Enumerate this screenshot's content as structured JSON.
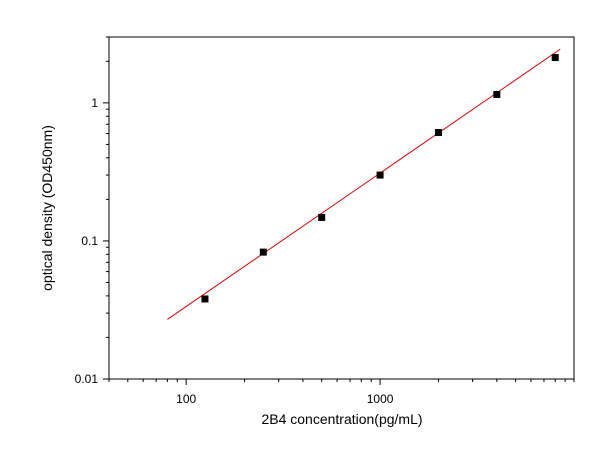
{
  "chart_data": {
    "type": "scatter",
    "xlabel": "2B4  concentration(pg/mL)",
    "ylabel": "optical density (OD450nm)",
    "xscale": "log",
    "yscale": "log",
    "xlim": [
      40,
      10000
    ],
    "ylim": [
      0.01,
      3
    ],
    "x_ticks": [
      {
        "value": 100,
        "label": "100"
      },
      {
        "value": 1000,
        "label": "1000"
      }
    ],
    "y_ticks": [
      {
        "value": 0.01,
        "label": "0.01"
      },
      {
        "value": 0.1,
        "label": "0.1"
      },
      {
        "value": 1,
        "label": "1"
      }
    ],
    "series": [
      {
        "marker": "square",
        "color": "#000000",
        "x": [
          125,
          250,
          500,
          1000,
          2000,
          4000,
          8000
        ],
        "y": [
          0.038,
          0.083,
          0.148,
          0.3,
          0.61,
          1.15,
          2.13
        ]
      }
    ],
    "fit_line": {
      "color": "#e00000",
      "x": [
        80,
        8500
      ],
      "y": [
        0.027,
        2.45
      ]
    }
  }
}
